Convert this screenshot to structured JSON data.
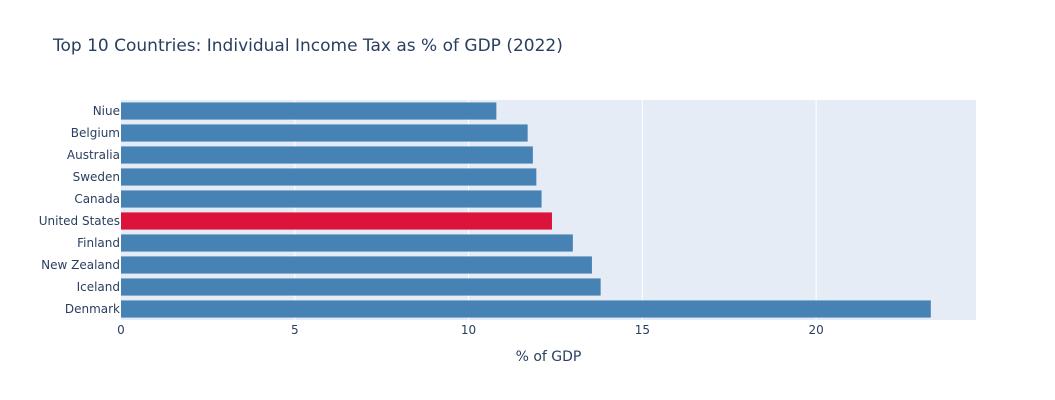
{
  "chart_data": {
    "type": "bar",
    "orientation": "horizontal",
    "title": "Top 10 Countries: Individual Income Tax as % of GDP (2022)",
    "xlabel": "% of GDP",
    "ylabel": "",
    "categories": [
      "Niue",
      "Belgium",
      "Australia",
      "Sweden",
      "Canada",
      "United States",
      "Finland",
      "New Zealand",
      "Iceland",
      "Denmark"
    ],
    "values": [
      10.8,
      11.7,
      11.85,
      11.95,
      12.1,
      12.4,
      13.0,
      13.55,
      13.8,
      23.3
    ],
    "highlight": "United States",
    "xlim": [
      0,
      24.6
    ],
    "xticks": [
      0,
      5,
      10,
      15,
      20
    ],
    "colors": {
      "bar": "#4682b4",
      "highlight": "#dc143c",
      "plot_bg": "#e5ecf6",
      "grid": "#ffffff",
      "text": "#2a3f5f"
    }
  }
}
